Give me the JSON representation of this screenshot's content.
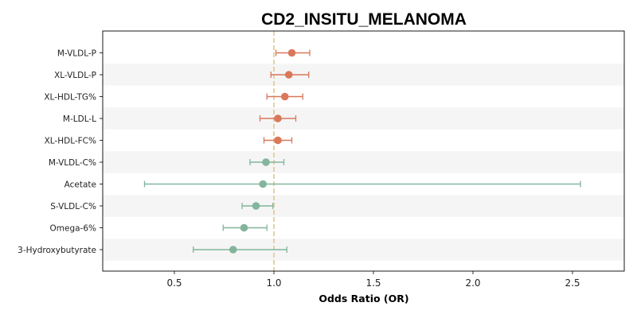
{
  "chart_data": {
    "type": "forest",
    "title": "CD2_INSITU_MELANOMA",
    "xlabel": "Odds Ratio (OR)",
    "ylabel": "",
    "xlim": [
      0.14,
      2.76
    ],
    "xticks": [
      0.5,
      1.0,
      1.5,
      2.0,
      2.5
    ],
    "xtick_labels": [
      "0.5",
      "1.0",
      "1.5",
      "2.0",
      "2.5"
    ],
    "reference_line": 1.0,
    "colors": {
      "positive": "#d9785a",
      "negative": "#82b59c",
      "reference": "#e8c48a",
      "band": "#f5f5f5"
    },
    "rows": [
      {
        "label": "M-VLDL-P",
        "or": 1.09,
        "lower": 1.01,
        "upper": 1.18,
        "group": "positive"
      },
      {
        "label": "XL-VLDL-P",
        "or": 1.075,
        "lower": 0.985,
        "upper": 1.175,
        "group": "positive"
      },
      {
        "label": "XL-HDL-TG%",
        "or": 1.055,
        "lower": 0.965,
        "upper": 1.145,
        "group": "positive"
      },
      {
        "label": "M-LDL-L",
        "or": 1.02,
        "lower": 0.93,
        "upper": 1.11,
        "group": "positive"
      },
      {
        "label": "XL-HDL-FC%",
        "or": 1.02,
        "lower": 0.95,
        "upper": 1.09,
        "group": "positive"
      },
      {
        "label": "M-VLDL-C%",
        "or": 0.96,
        "lower": 0.88,
        "upper": 1.05,
        "group": "negative"
      },
      {
        "label": "Acetate",
        "or": 0.945,
        "lower": 0.35,
        "upper": 2.54,
        "group": "negative"
      },
      {
        "label": "S-VLDL-C%",
        "or": 0.91,
        "lower": 0.84,
        "upper": 0.995,
        "group": "negative"
      },
      {
        "label": "Omega-6%",
        "or": 0.85,
        "lower": 0.745,
        "upper": 0.965,
        "group": "negative"
      },
      {
        "label": "3-Hydroxybutyrate",
        "or": 0.795,
        "lower": 0.595,
        "upper": 1.065,
        "group": "negative"
      }
    ]
  }
}
